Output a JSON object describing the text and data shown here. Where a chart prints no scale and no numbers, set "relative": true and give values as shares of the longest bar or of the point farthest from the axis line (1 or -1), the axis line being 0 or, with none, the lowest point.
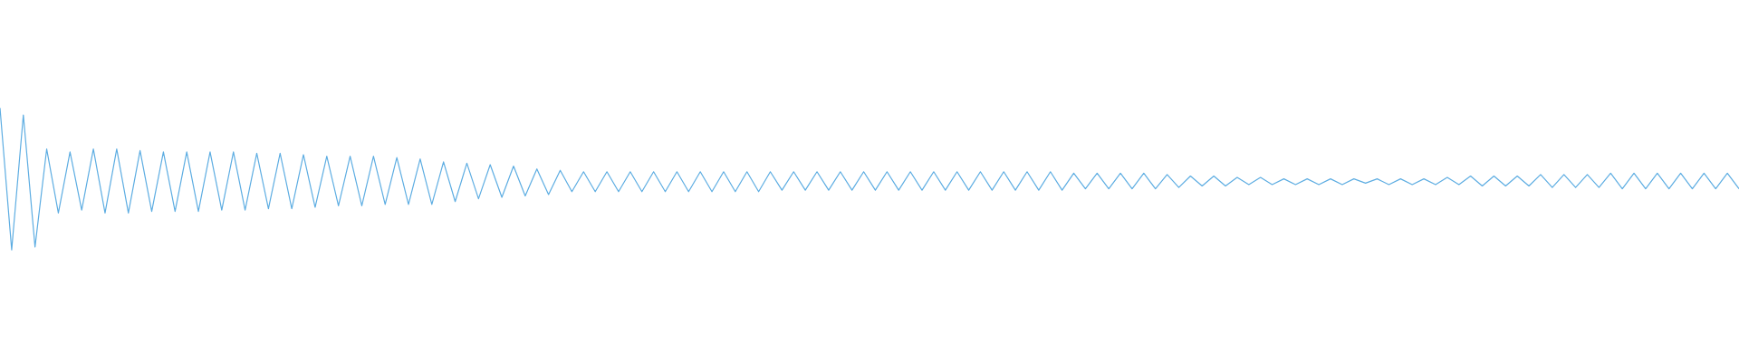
{
  "chart_data": {
    "type": "line",
    "relative": true,
    "color": "#5dade2",
    "categories": [
      null,
      null,
      null,
      null,
      null,
      null,
      null,
      null,
      null,
      null,
      null,
      null,
      null,
      null,
      null,
      null,
      null,
      null,
      null,
      null,
      null,
      null,
      null,
      null,
      null,
      null,
      null,
      null,
      null,
      null,
      null,
      null,
      null,
      null,
      null,
      null,
      null,
      null,
      null,
      null,
      null,
      null,
      null,
      null,
      null,
      null,
      null,
      null,
      null,
      null,
      null,
      null,
      null,
      null,
      null,
      null,
      null,
      null,
      null,
      null,
      null,
      null,
      null,
      null,
      null,
      null,
      null,
      null,
      null,
      null,
      null,
      null,
      null,
      null,
      null,
      null,
      null,
      null,
      null,
      null,
      null,
      null,
      null,
      null,
      null,
      null,
      null,
      null,
      null,
      null,
      null,
      null,
      null,
      null,
      null,
      null,
      null,
      null,
      null,
      null,
      null,
      null,
      null,
      null,
      null,
      null,
      null,
      null,
      null,
      null,
      null,
      null,
      null,
      null,
      null,
      null,
      null,
      null,
      null,
      null,
      null,
      null,
      null,
      null,
      null,
      null,
      null,
      null,
      null,
      null,
      null,
      null,
      null,
      null,
      null,
      null,
      null,
      null,
      null,
      null,
      null,
      null,
      null,
      null,
      null,
      null,
      null,
      null,
      null,
      null
    ],
    "values": [
      1.0,
      0.0,
      0.95,
      0.02,
      0.71,
      0.26,
      0.69,
      0.28,
      0.71,
      0.26,
      0.71,
      0.26,
      0.7,
      0.27,
      0.69,
      0.27,
      0.69,
      0.27,
      0.69,
      0.28,
      0.69,
      0.28,
      0.68,
      0.29,
      0.68,
      0.29,
      0.67,
      0.3,
      0.66,
      0.31,
      0.66,
      0.31,
      0.66,
      0.32,
      0.65,
      0.32,
      0.64,
      0.32,
      0.62,
      0.34,
      0.61,
      0.36,
      0.6,
      0.37,
      0.59,
      0.38,
      0.57,
      0.39,
      0.56,
      0.41,
      0.55,
      0.41,
      0.55,
      0.41,
      0.55,
      0.41,
      0.55,
      0.41,
      0.55,
      0.41,
      0.55,
      0.41,
      0.55,
      0.41,
      0.55,
      0.41,
      0.55,
      0.42,
      0.55,
      0.42,
      0.55,
      0.42,
      0.55,
      0.42,
      0.55,
      0.42,
      0.55,
      0.42,
      0.55,
      0.42,
      0.55,
      0.42,
      0.55,
      0.42,
      0.55,
      0.42,
      0.55,
      0.42,
      0.55,
      0.42,
      0.55,
      0.42,
      0.54,
      0.43,
      0.54,
      0.43,
      0.54,
      0.43,
      0.54,
      0.43,
      0.53,
      0.44,
      0.52,
      0.45,
      0.52,
      0.45,
      0.51,
      0.46,
      0.51,
      0.46,
      0.5,
      0.46,
      0.5,
      0.46,
      0.5,
      0.46,
      0.5,
      0.47,
      0.5,
      0.46,
      0.5,
      0.46,
      0.5,
      0.46,
      0.51,
      0.46,
      0.52,
      0.45,
      0.52,
      0.45,
      0.52,
      0.45,
      0.53,
      0.44,
      0.53,
      0.44,
      0.53,
      0.44,
      0.54,
      0.43,
      0.54,
      0.43,
      0.54,
      0.43,
      0.54,
      0.43,
      0.54,
      0.43,
      0.54,
      0.43
    ]
  }
}
